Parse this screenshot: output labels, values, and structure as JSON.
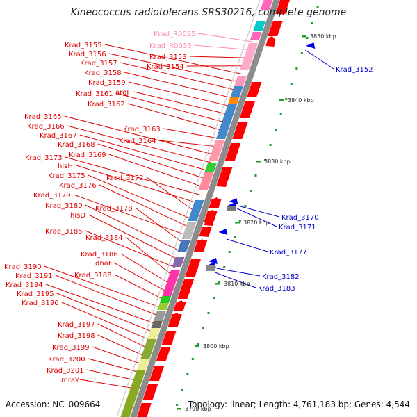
{
  "title": "Kineococcus radiotolerans SRS30216, complete genome",
  "accession": "Accession: NC_009664",
  "topology": "Topology: linear; Length: 4,761,183 bp; Genes: 4,544",
  "colors": {
    "left_label": "#e00000",
    "right_label": "#0000cc",
    "rna_label": "#ff88bb",
    "gene_red": "#ff0000",
    "gene_blue": "#0000ee",
    "ruler_green": "#229922",
    "strand_grey": "#999999"
  },
  "scale_ticks": [
    "3850 kbp",
    "3840 kbp",
    "3830 kbp",
    "3820 kbp",
    "3810 kbp",
    "3800 kbp",
    "3790 kbp"
  ],
  "left_labels": [
    "Krad_R0035",
    "Krad_R0036",
    "Krad_3153",
    "Krad_3154",
    "Krad_3155",
    "Krad_3156",
    "Krad_3157",
    "Krad_3158",
    "Krad_3159",
    "argJ",
    "Krad_3161",
    "Krad_3162",
    "Krad_3163",
    "Krad_3164",
    "Krad_3165",
    "Krad_3166",
    "Krad_3167",
    "Krad_3168",
    "Krad_3169",
    "Krad_3173",
    "hisH",
    "Krad_3172",
    "Krad_3175",
    "Krad_3176",
    "Krad_3179",
    "Krad_3178",
    "Krad_3180",
    "hisD",
    "Krad_3185",
    "Krad_3184",
    "Krad_3186",
    "dnaE",
    "Krad_3188",
    "Krad_3190",
    "Krad_3191",
    "Krad_3194",
    "Krad_3195",
    "Krad_3196",
    "Krad_3197",
    "Krad_3198",
    "Krad_3199",
    "Krad_3200",
    "Krad_3201",
    "mraY"
  ],
  "right_labels": [
    "Krad_3152",
    "Krad_3170",
    "Krad_3171",
    "Krad_3177",
    "Krad_3182",
    "Krad_3183"
  ]
}
